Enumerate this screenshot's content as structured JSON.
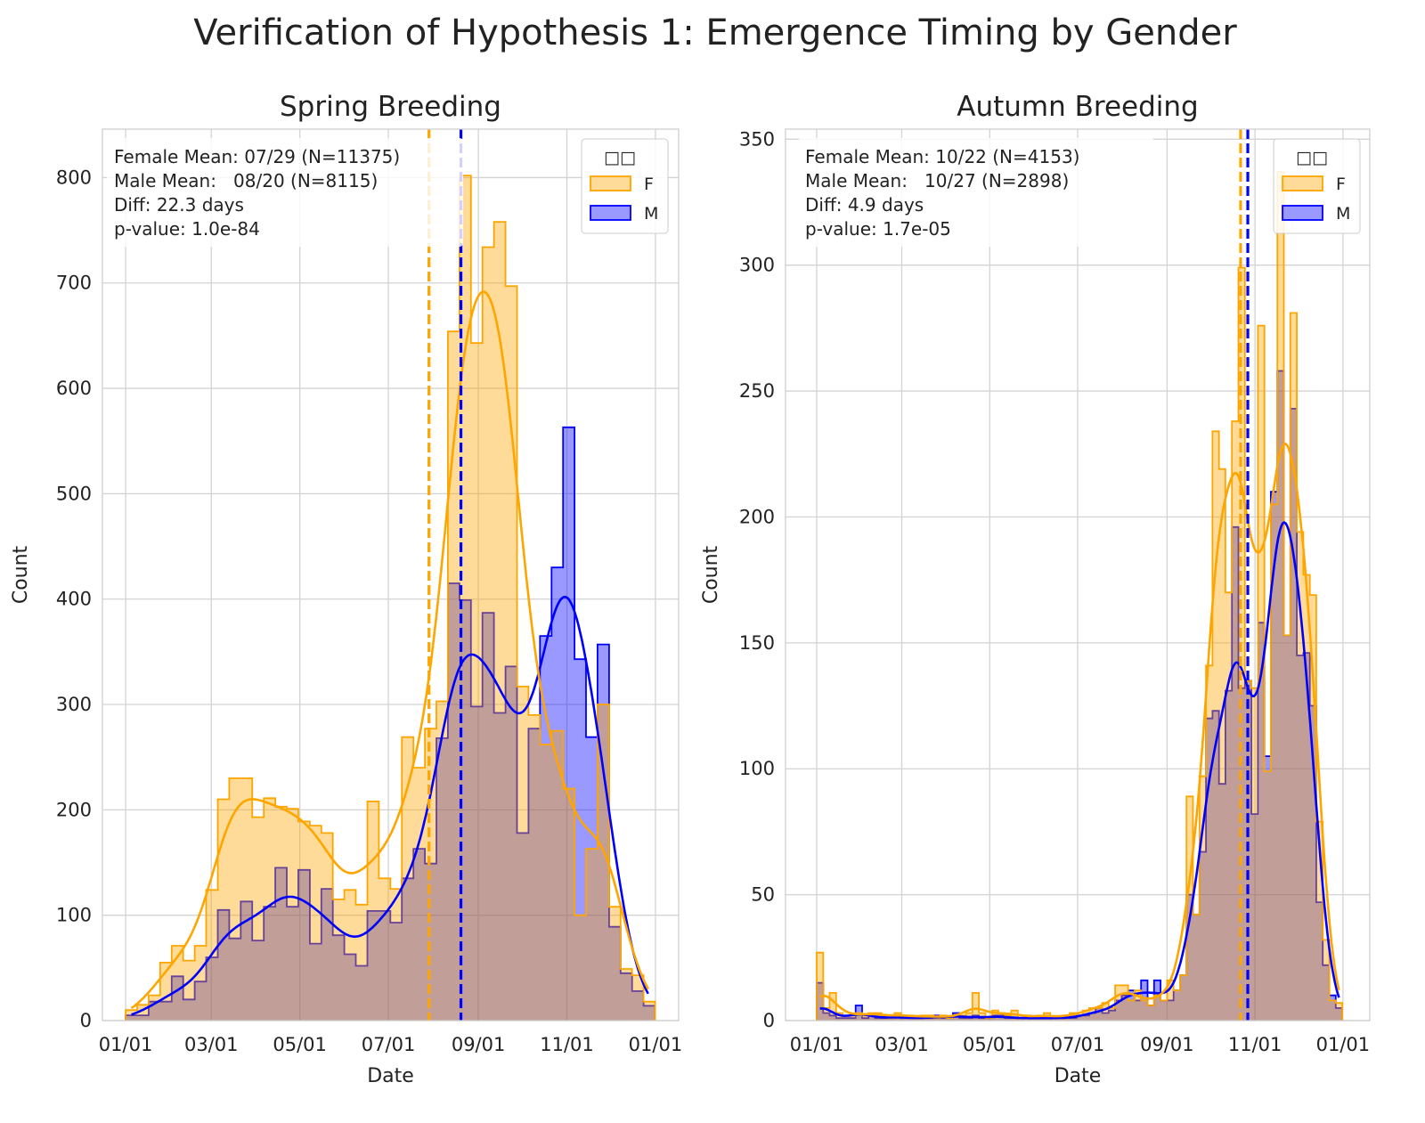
{
  "figure_title": "Verification of Hypothesis 1: Emergence Timing by Gender",
  "chart_data": [
    {
      "type": "histogram",
      "title": "Spring Breeding",
      "xlabel": "Date",
      "ylabel": "Count",
      "xlim_days": [
        -16,
        381
      ],
      "ylim": [
        0,
        846
      ],
      "grid": true,
      "xticks": [
        {
          "day": 0,
          "label": "01/01"
        },
        {
          "day": 59,
          "label": "03/01"
        },
        {
          "day": 120,
          "label": "05/01"
        },
        {
          "day": 181,
          "label": "07/01"
        },
        {
          "day": 243,
          "label": "09/01"
        },
        {
          "day": 304,
          "label": "11/01"
        },
        {
          "day": 365,
          "label": "01/01"
        }
      ],
      "yticks": [
        0,
        100,
        200,
        300,
        400,
        500,
        600,
        700,
        800
      ],
      "bin_start_day": 0,
      "bin_width_days": 7.93,
      "kde_bandwidth_days": 13,
      "series": [
        {
          "name": "M",
          "color": "#0000ff",
          "counts": [
            5,
            5,
            18,
            18,
            42,
            20,
            37,
            60,
            105,
            78,
            113,
            76,
            108,
            145,
            108,
            143,
            73,
            125,
            81,
            63,
            52,
            104,
            104,
            93,
            135,
            163,
            149,
            268,
            415,
            399,
            298,
            387,
            292,
            336,
            178,
            277,
            365,
            430,
            563,
            343,
            269,
            357,
            89,
            45,
            28,
            14
          ]
        },
        {
          "name": "F",
          "color": "#ffa500",
          "counts": [
            10,
            15,
            24,
            55,
            71,
            57,
            71,
            124,
            210,
            230,
            230,
            193,
            211,
            203,
            201,
            189,
            185,
            178,
            115,
            124,
            110,
            208,
            135,
            125,
            269,
            240,
            277,
            303,
            654,
            802,
            643,
            734,
            758,
            697,
            317,
            290,
            262,
            275,
            220,
            100,
            163,
            300,
            108,
            49,
            43,
            18
          ]
        }
      ],
      "means": [
        {
          "name": "F",
          "day": 209,
          "color": "#ffa500"
        },
        {
          "name": "M",
          "day": 231,
          "color": "#0000ff"
        }
      ],
      "annotation_lines": [
        "Female Mean: 07/29 (N=11375)",
        "Male Mean:   08/20 (N=8115)",
        "Diff: 22.3 days",
        "p-value: 1.0e-84"
      ],
      "legend": {
        "title": "□□",
        "position": "top-right",
        "entries": [
          "F",
          "M"
        ]
      }
    },
    {
      "type": "histogram",
      "title": "Autumn Breeding",
      "xlabel": "Date",
      "ylabel": "Count",
      "xlim_days": [
        -21.6,
        383.6
      ],
      "ylim": [
        0,
        354
      ],
      "grid": true,
      "xticks": [
        {
          "day": 0,
          "label": "01/01"
        },
        {
          "day": 59,
          "label": "03/01"
        },
        {
          "day": 120,
          "label": "05/01"
        },
        {
          "day": 181,
          "label": "07/01"
        },
        {
          "day": 243,
          "label": "09/01"
        },
        {
          "day": 304,
          "label": "11/01"
        },
        {
          "day": 365,
          "label": "01/01"
        }
      ],
      "yticks": [
        0,
        50,
        100,
        150,
        200,
        250,
        300,
        350
      ],
      "bin_start_day": 0,
      "bin_width_days": 4.5,
      "kde_bandwidth_days": 7,
      "series": [
        {
          "name": "M",
          "color": "#0000ff",
          "counts": [
            15,
            3,
            2,
            1,
            1,
            1,
            6,
            1,
            2,
            1,
            1,
            1,
            2,
            1,
            1,
            1,
            1,
            1,
            2,
            1,
            1,
            3,
            1,
            1,
            2,
            1,
            1,
            2,
            2,
            1,
            1,
            1,
            1,
            1,
            1,
            1,
            1,
            1,
            1,
            1,
            2,
            2,
            3,
            5,
            3,
            4,
            8,
            10,
            12,
            8,
            16,
            6,
            16,
            8,
            8,
            12,
            18,
            50,
            42,
            67,
            120,
            123,
            94,
            131,
            196,
            132,
            135,
            82,
            158,
            105,
            210,
            258,
            153,
            243,
            145,
            146,
            125,
            47,
            22,
            10,
            5
          ]
        },
        {
          "name": "F",
          "color": "#ffa500",
          "counts": [
            27,
            5,
            11,
            3,
            2,
            2,
            3,
            2,
            3,
            3,
            2,
            1,
            3,
            2,
            2,
            1,
            2,
            2,
            1,
            2,
            1,
            2,
            2,
            3,
            11,
            3,
            1,
            4,
            3,
            2,
            4,
            1,
            2,
            1,
            2,
            3,
            1,
            1,
            2,
            3,
            2,
            4,
            5,
            5,
            7,
            5,
            14,
            14,
            8,
            12,
            8,
            6,
            10,
            8,
            16,
            12,
            18,
            89,
            42,
            97,
            141,
            234,
            219,
            170,
            238,
            299,
            135,
            132,
            276,
            99,
            205,
            337,
            153,
            281,
            194,
            177,
            169,
            79,
            32,
            8,
            7
          ]
        }
      ],
      "means": [
        {
          "name": "F",
          "day": 294,
          "color": "#ffa500"
        },
        {
          "name": "M",
          "day": 299,
          "color": "#0000ff"
        }
      ],
      "annotation_lines": [
        "Female Mean: 10/22 (N=4153)",
        "Male Mean:   10/27 (N=2898)",
        "Diff: 4.9 days",
        "p-value: 1.7e-05"
      ],
      "legend": {
        "title": "□□",
        "position": "top-right",
        "entries": [
          "F",
          "M"
        ]
      }
    }
  ]
}
